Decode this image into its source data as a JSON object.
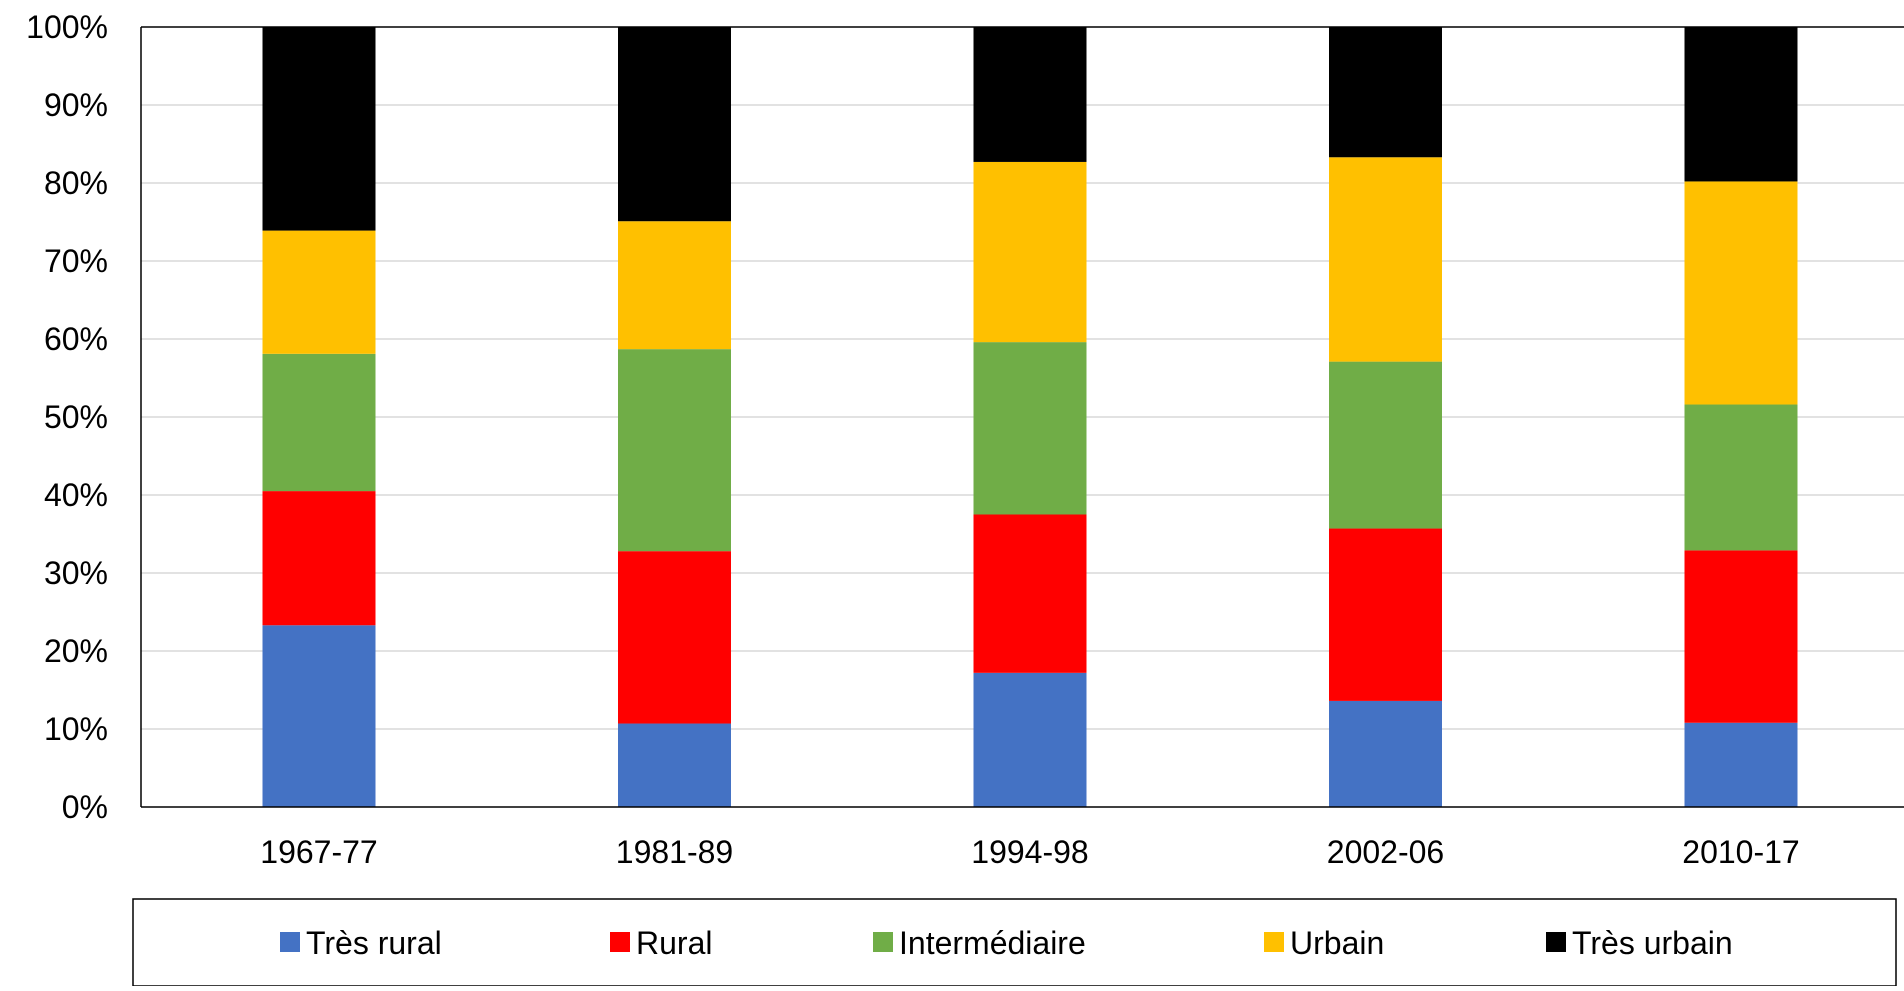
{
  "chart_data": {
    "type": "bar",
    "stacked": true,
    "percent_stacked": true,
    "title": "",
    "xlabel": "",
    "ylabel": "",
    "ylim": [
      0,
      1
    ],
    "yticks": [
      "0%",
      "10%",
      "20%",
      "30%",
      "40%",
      "50%",
      "60%",
      "70%",
      "80%",
      "90%",
      "100%"
    ],
    "grid": true,
    "legend_position": "bottom",
    "categories": [
      "1967-77",
      "1981-89",
      "1994-98",
      "2002-06",
      "2010-17"
    ],
    "series": [
      {
        "name": "Très rural",
        "color": "#4472C4",
        "values": [
          0.233,
          0.107,
          0.172,
          0.136,
          0.108
        ]
      },
      {
        "name": "Rural",
        "color": "#FF0000",
        "values": [
          0.172,
          0.221,
          0.203,
          0.221,
          0.221
        ]
      },
      {
        "name": "Intermédiaire",
        "color": "#70AD47",
        "values": [
          0.176,
          0.259,
          0.221,
          0.214,
          0.187
        ]
      },
      {
        "name": "Urbain",
        "color": "#FFC000",
        "values": [
          0.158,
          0.164,
          0.231,
          0.262,
          0.286
        ]
      },
      {
        "name": "Très urbain",
        "color": "#000000",
        "values": [
          0.261,
          0.249,
          0.173,
          0.167,
          0.198
        ]
      }
    ]
  }
}
